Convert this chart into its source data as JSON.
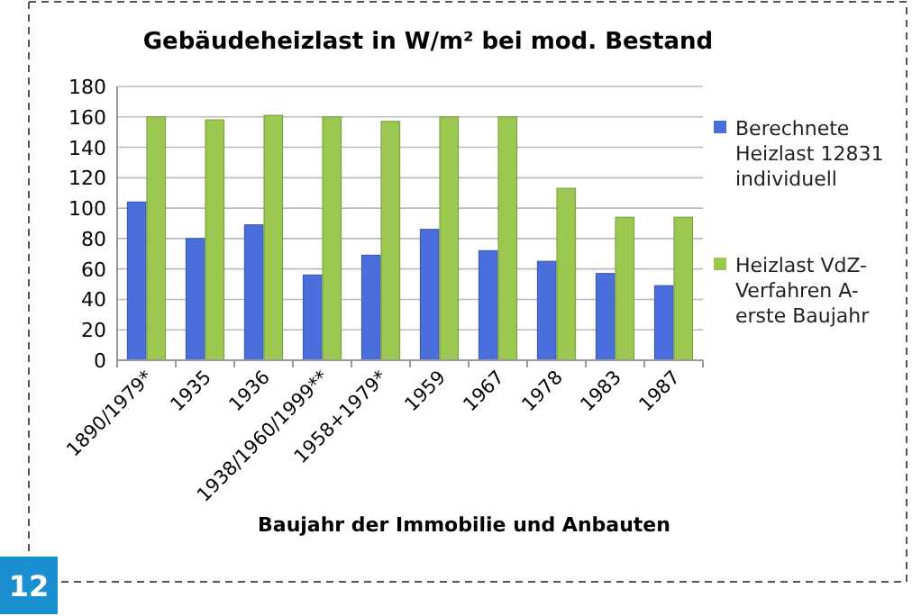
{
  "chart_data": {
    "type": "bar",
    "title": "Gebäudeheizlast in W/m² bei mod. Bestand",
    "xlabel": "Baujahr der Immobilie  und Anbauten",
    "categories": [
      "1890/1979*",
      "1935",
      "1936",
      "1938/1960/1999**",
      "1958+1979*",
      "1959",
      "1967",
      "1978",
      "1983",
      "1987"
    ],
    "series": [
      {
        "name": "Berechnete Heizlast 12831 individuell",
        "color": "#4a6fdc",
        "values": [
          104,
          80,
          89,
          56,
          69,
          86,
          72,
          65,
          57,
          49
        ]
      },
      {
        "name": "Heizlast VdZ-Verfahren A-erste Baujahr",
        "color": "#9bc850",
        "values": [
          160,
          158,
          161,
          160,
          157,
          160,
          160,
          113,
          94,
          94
        ]
      }
    ],
    "ylim": [
      0,
      180
    ],
    "yticks": [
      0,
      20,
      40,
      60,
      80,
      100,
      120,
      140,
      160,
      180
    ],
    "grid": "y",
    "legend": "right",
    "annotations": [
      "12"
    ]
  }
}
